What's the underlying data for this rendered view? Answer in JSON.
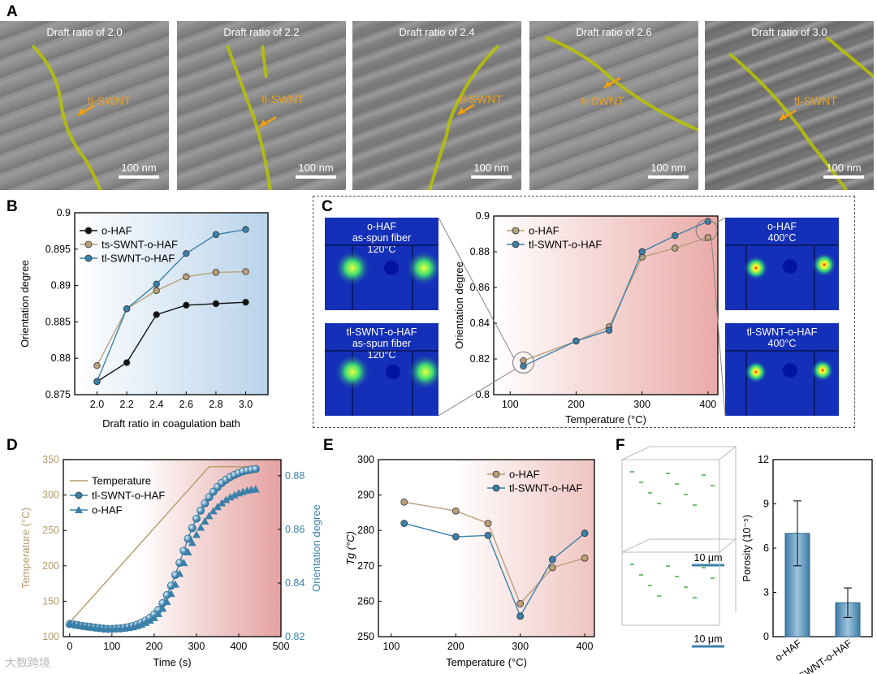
{
  "panels": {
    "a": "A",
    "b": "B",
    "c": "C",
    "d": "D",
    "e": "E",
    "f": "F"
  },
  "tem_images": [
    {
      "caption": "Draft ratio of 2.0",
      "label": "tl-SWNT",
      "scale": "100 nm"
    },
    {
      "caption": "Draft ratio of 2.2",
      "label": "tl-SWNT",
      "scale": "100 nm"
    },
    {
      "caption": "Draft ratio of 2.4",
      "label": "tl-SWNT",
      "scale": "100 nm"
    },
    {
      "caption": "Draft ratio of 2.6",
      "label": "tl-SWNT",
      "scale": "100 nm"
    },
    {
      "caption": "Draft ratio of 3.0",
      "label": "tl-SWNT",
      "scale": "100 nm"
    }
  ],
  "xray_insets": {
    "ohaf_spun": {
      "line1": "o-HAF",
      "line2": "as-spun fiber",
      "line3": "120°C"
    },
    "tl_spun": {
      "line1": "tl-SWNT-o-HAF",
      "line2": "as-spun fiber",
      "line3": "120°C"
    },
    "ohaf_400": {
      "line1": "o-HAF",
      "line2": "400°C"
    },
    "tl_400": {
      "line1": "tl-SWNT-o-HAF",
      "line2": "400°C"
    }
  },
  "colors": {
    "black": "#111111",
    "tan": "#b8a07a",
    "blue": "#3b80a8",
    "temp": "#b59a6a"
  },
  "chart_data": [
    {
      "id": "B",
      "type": "line",
      "xlabel": "Draft ratio in  coagulation bath",
      "ylabel": "Orientation degree",
      "x": [
        2.0,
        2.2,
        2.4,
        2.6,
        2.8,
        3.0
      ],
      "xlim": [
        1.85,
        3.15
      ],
      "ylim": [
        0.875,
        0.9
      ],
      "xticks": [
        "2.0",
        "2.2",
        "2.4",
        "2.6",
        "2.8",
        "3.0"
      ],
      "yticks": [
        "0.875",
        "0.88",
        "0.885",
        "0.89",
        "0.895",
        "0.9"
      ],
      "series": [
        {
          "name": "o-HAF",
          "values": [
            0.8768,
            0.8794,
            0.886,
            0.8873,
            0.8875,
            0.8877
          ]
        },
        {
          "name": "ts-SWNT-o-HAF",
          "values": [
            0.879,
            0.8868,
            0.8893,
            0.8912,
            0.8918,
            0.8919
          ]
        },
        {
          "name": "tl-SWNT-o-HAF",
          "values": [
            0.8768,
            0.8868,
            0.8902,
            0.8944,
            0.897,
            0.8977
          ]
        }
      ]
    },
    {
      "id": "C",
      "type": "line",
      "xlabel": "Temperature (°C)",
      "ylabel": "Orientation degree",
      "x": [
        120,
        200,
        250,
        300,
        350,
        400
      ],
      "xlim": [
        75,
        415
      ],
      "ylim": [
        0.8,
        0.9
      ],
      "xticks": [
        "100",
        "200",
        "300",
        "400"
      ],
      "yticks": [
        "0.8",
        "0.82",
        "0.84",
        "0.86",
        "0.88",
        "0.9"
      ],
      "series": [
        {
          "name": "o-HAF",
          "values": [
            0.819,
            0.83,
            0.838,
            0.877,
            0.882,
            0.888
          ]
        },
        {
          "name": "tl-SWNT-o-HAF",
          "values": [
            0.816,
            0.83,
            0.836,
            0.88,
            0.889,
            0.897
          ]
        }
      ]
    },
    {
      "id": "D",
      "type": "line",
      "xlabel": "Time (s)",
      "ylabel": "Temperature (°C)",
      "ylabel2": "Orientation degree",
      "xlim": [
        -15,
        500
      ],
      "ylim": [
        100,
        350
      ],
      "ylim2": [
        0.82,
        0.886
      ],
      "xticks": [
        "0",
        "100",
        "200",
        "300",
        "400",
        "500"
      ],
      "yticks": [
        "100",
        "150",
        "200",
        "250",
        "300",
        "350"
      ],
      "yticks2": [
        "0.82",
        "0.84",
        "0.86",
        "0.88"
      ],
      "temperature": {
        "name": "Temperature",
        "x": [
          0,
          330,
          440
        ],
        "values": [
          120,
          340,
          340
        ]
      },
      "series": [
        {
          "name": "tl-SWNT-o-HAF",
          "x": [
            0,
            10,
            20,
            30,
            40,
            50,
            60,
            70,
            80,
            90,
            100,
            110,
            120,
            130,
            140,
            150,
            160,
            170,
            180,
            190,
            200,
            210,
            220,
            230,
            240,
            250,
            260,
            270,
            280,
            290,
            300,
            310,
            320,
            330,
            340,
            350,
            360,
            370,
            380,
            390,
            400,
            410,
            420,
            430,
            440
          ],
          "values": [
            0.8247,
            0.8245,
            0.8243,
            0.824,
            0.8238,
            0.8236,
            0.8234,
            0.8232,
            0.823,
            0.8229,
            0.8229,
            0.823,
            0.8231,
            0.8233,
            0.8236,
            0.824,
            0.8245,
            0.8252,
            0.826,
            0.827,
            0.8283,
            0.83,
            0.8325,
            0.8355,
            0.839,
            0.843,
            0.8475,
            0.852,
            0.8565,
            0.8605,
            0.864,
            0.867,
            0.8697,
            0.872,
            0.874,
            0.8758,
            0.8773,
            0.8785,
            0.8795,
            0.8803,
            0.881,
            0.8816,
            0.882,
            0.8823,
            0.8825
          ]
        },
        {
          "name": "o-HAF",
          "x": [
            0,
            10,
            20,
            30,
            40,
            50,
            60,
            70,
            80,
            90,
            100,
            110,
            120,
            130,
            140,
            150,
            160,
            170,
            180,
            190,
            200,
            210,
            220,
            230,
            240,
            250,
            260,
            270,
            280,
            290,
            300,
            310,
            320,
            330,
            340,
            350,
            360,
            370,
            380,
            390,
            400,
            410,
            420,
            430,
            440
          ],
          "values": [
            0.825,
            0.8245,
            0.8242,
            0.824,
            0.8237,
            0.8235,
            0.8233,
            0.8231,
            0.823,
            0.8229,
            0.8229,
            0.8229,
            0.823,
            0.8231,
            0.8233,
            0.8236,
            0.824,
            0.8245,
            0.8252,
            0.826,
            0.827,
            0.8285,
            0.8305,
            0.833,
            0.836,
            0.8395,
            0.8435,
            0.8475,
            0.8515,
            0.855,
            0.858,
            0.8607,
            0.863,
            0.865,
            0.8668,
            0.8684,
            0.8698,
            0.871,
            0.872,
            0.8728,
            0.8735,
            0.874,
            0.8745,
            0.8748,
            0.875
          ]
        }
      ]
    },
    {
      "id": "E",
      "type": "line",
      "xlabel": "Temperature (°C)",
      "ylabel": "Tg (°C)",
      "x": [
        120,
        200,
        250,
        300,
        350,
        400
      ],
      "xlim": [
        80,
        415
      ],
      "ylim": [
        250,
        300
      ],
      "xticks": [
        "100",
        "200",
        "300",
        "400"
      ],
      "yticks": [
        "250",
        "260",
        "270",
        "280",
        "290",
        "300"
      ],
      "series": [
        {
          "name": "o-HAF",
          "values": [
            288,
            285.5,
            282,
            259.3,
            269.5,
            272.2
          ]
        },
        {
          "name": "tl-SWNT-o-HAF",
          "values": [
            282,
            278.2,
            278.6,
            255.8,
            271.8,
            279.2
          ]
        }
      ]
    },
    {
      "id": "F",
      "type": "bar",
      "ylabel": "Porosity (10⁻⁵)",
      "categories": [
        "o-HAF",
        "tl-SWNT-o-HAF"
      ],
      "values": [
        7.0,
        2.3
      ],
      "errors": [
        2.2,
        1.0
      ],
      "ylim": [
        0,
        12
      ],
      "yticks": [
        "0",
        "3",
        "6",
        "9",
        "12"
      ],
      "scale_labels": [
        "10 μm",
        "10 μm"
      ]
    }
  ],
  "watermark": "大数跨境"
}
